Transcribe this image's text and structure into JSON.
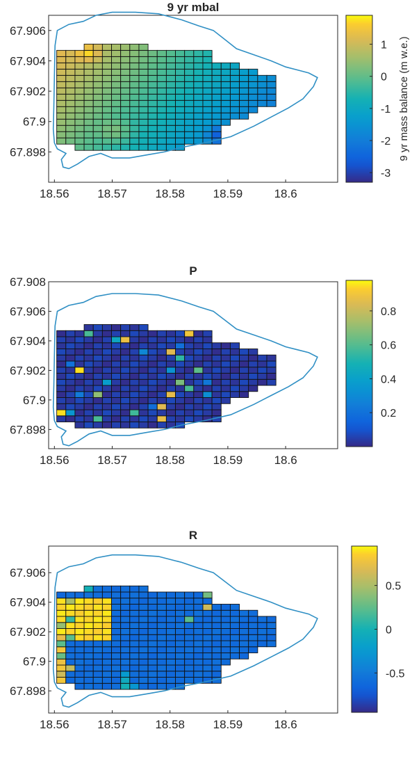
{
  "chart_data": [
    {
      "type": "heatmap",
      "title": "9 yr mbal",
      "xticks": [
        "18.56",
        "18.57",
        "18.58",
        "18.59",
        "18.6"
      ],
      "yticks": [
        "67.906",
        "67.904",
        "67.902",
        "67.9",
        "67.898"
      ],
      "xlim": [
        18.559,
        18.609
      ],
      "ylim": [
        67.896,
        67.907
      ],
      "grid_origin": [
        18.5604,
        67.8981
      ],
      "cell_size": [
        0.00158,
        0.000412
      ],
      "colorbar": {
        "ticks": [
          "1",
          "0",
          "-1",
          "-2",
          "-3"
        ],
        "tick_values": [
          1,
          0,
          -1,
          -2,
          -3
        ],
        "range": [
          -3.3,
          1.9
        ],
        "label": "9 yr mass balance (m w.e.)"
      },
      "row_extents": [
        [
          2,
          13
        ],
        [
          0,
          17
        ],
        [
          0,
          17
        ],
        [
          0,
          17
        ],
        [
          0,
          18
        ],
        [
          0,
          20
        ],
        [
          0,
          21
        ],
        [
          0,
          23
        ],
        [
          0,
          23
        ],
        [
          0,
          23
        ],
        [
          0,
          23
        ],
        [
          0,
          23
        ],
        [
          0,
          21
        ],
        [
          0,
          19
        ],
        [
          0,
          16
        ],
        [
          0,
          16
        ],
        [
          3,
          9
        ]
      ],
      "value_field": {
        "base": 0.2,
        "x_gradient": -2.6,
        "y_gradient": 1.1,
        "anomalies": [
          {
            "c": 17.5,
            "r": 2,
            "rad": 2,
            "add": -1.3
          },
          {
            "c": 6,
            "r": 2.5,
            "rad": 2.5,
            "add": 0.6
          },
          {
            "c": 3,
            "r": 15,
            "rad": 2,
            "add": 0.8
          }
        ]
      }
    },
    {
      "type": "heatmap",
      "title": "P",
      "xticks": [
        "18.56",
        "18.57",
        "18.58",
        "18.59",
        "18.6"
      ],
      "yticks": [
        "67.908",
        "67.906",
        "67.904",
        "67.902",
        "67.9",
        "67.898"
      ],
      "xlim": [
        18.559,
        18.609
      ],
      "ylim": [
        67.8967,
        67.908
      ],
      "grid_origin": [
        18.5604,
        67.8981
      ],
      "cell_size": [
        0.00158,
        0.000412
      ],
      "colorbar": {
        "ticks": [
          "0.8",
          "0.6",
          "0.4",
          "0.2"
        ],
        "tick_values": [
          0.8,
          0.6,
          0.4,
          0.2
        ],
        "range": [
          0,
          0.98
        ]
      },
      "row_extents": [
        [
          2,
          13
        ],
        [
          0,
          17
        ],
        [
          0,
          17
        ],
        [
          0,
          17
        ],
        [
          0,
          18
        ],
        [
          0,
          20
        ],
        [
          0,
          21
        ],
        [
          0,
          23
        ],
        [
          0,
          23
        ],
        [
          0,
          23
        ],
        [
          0,
          23
        ],
        [
          0,
          23
        ],
        [
          0,
          21
        ],
        [
          0,
          19
        ],
        [
          0,
          16
        ],
        [
          0,
          16
        ],
        [
          3,
          9
        ]
      ],
      "default_value": 0.04,
      "cells": [
        [
          0,
          2,
          0.92
        ],
        [
          1,
          2,
          0.35
        ],
        [
          2,
          5,
          0.25
        ],
        [
          4,
          5,
          0.7
        ],
        [
          2,
          9,
          0.92
        ],
        [
          1,
          10,
          0.18
        ],
        [
          4,
          1,
          0.55
        ],
        [
          5,
          7,
          0.35
        ],
        [
          7,
          14,
          0.85
        ],
        [
          6,
          14,
          0.45
        ],
        [
          3,
          15,
          0.55
        ],
        [
          4,
          18,
          0.35
        ],
        [
          8,
          20,
          0.78
        ],
        [
          7,
          18,
          0.6
        ],
        [
          4,
          20,
          0.22
        ],
        [
          10,
          23,
          0.15
        ],
        [
          11,
          1,
          0.9
        ],
        [
          11,
          3,
          0.82
        ],
        [
          12,
          5,
          0.88
        ],
        [
          13,
          7,
          0.65
        ],
        [
          12,
          9,
          0.3
        ],
        [
          13,
          11,
          0.55
        ],
        [
          12,
          12,
          0.88
        ],
        [
          13,
          13,
          0.22
        ],
        [
          14,
          15,
          0.9
        ],
        [
          15,
          16,
          0.18
        ],
        [
          14,
          6,
          0.55
        ],
        [
          15,
          9,
          0.6
        ],
        [
          16,
          5,
          0.3
        ],
        [
          16,
          7,
          0.22
        ],
        [
          9,
          12,
          0.3
        ],
        [
          10,
          3,
          0.2
        ],
        [
          8,
          2,
          0.55
        ]
      ]
    },
    {
      "type": "heatmap",
      "title": "R",
      "xticks": [
        "18.56",
        "18.57",
        "18.58",
        "18.59",
        "18.6"
      ],
      "yticks": [
        "67.906",
        "67.904",
        "67.902",
        "67.9",
        "67.898"
      ],
      "xlim": [
        18.559,
        18.609
      ],
      "ylim": [
        67.8965,
        67.9078
      ],
      "grid_origin": [
        18.5604,
        67.8981
      ],
      "cell_size": [
        0.00158,
        0.000412
      ],
      "colorbar": {
        "ticks": [
          "0.5",
          "0",
          "-0.5"
        ],
        "tick_values": [
          0.5,
          0,
          -0.5
        ],
        "range": [
          -0.95,
          0.95
        ]
      },
      "row_extents": [
        [
          2,
          13
        ],
        [
          0,
          17
        ],
        [
          0,
          17
        ],
        [
          0,
          17
        ],
        [
          0,
          18
        ],
        [
          0,
          20
        ],
        [
          0,
          21
        ],
        [
          0,
          23
        ],
        [
          0,
          23
        ],
        [
          0,
          23
        ],
        [
          0,
          23
        ],
        [
          0,
          23
        ],
        [
          0,
          21
        ],
        [
          0,
          19
        ],
        [
          0,
          16
        ],
        [
          0,
          16
        ],
        [
          3,
          9
        ]
      ],
      "default_value": -0.6,
      "cells": [
        [
          0,
          0,
          0.85
        ],
        [
          0,
          1,
          0.8
        ],
        [
          0,
          2,
          0.6
        ],
        [
          0,
          3,
          0.82
        ],
        [
          0,
          4,
          0.75
        ],
        [
          0,
          5,
          0.3
        ],
        [
          0,
          6,
          0.8
        ],
        [
          0,
          7,
          0.2
        ],
        [
          0,
          8,
          0.75
        ],
        [
          0,
          9,
          0.9
        ],
        [
          0,
          10,
          0.45
        ],
        [
          1,
          0,
          0.75
        ],
        [
          1,
          3,
          0.55
        ],
        [
          1,
          8,
          0.2
        ],
        [
          1,
          14,
          0.5
        ],
        [
          1,
          11,
          0.15
        ],
        [
          2,
          17,
          0.2
        ],
        [
          2,
          18,
          0.1
        ],
        [
          3,
          16,
          0.0
        ],
        [
          4,
          18,
          0.15
        ],
        [
          3,
          19,
          0.35
        ],
        [
          4,
          19,
          0.1
        ],
        [
          7,
          0,
          0.0
        ],
        [
          7,
          1,
          -0.1
        ],
        [
          7,
          2,
          -0.2
        ],
        [
          8,
          0,
          -0.3
        ],
        [
          12,
          20,
          0.1
        ],
        [
          12,
          18,
          0.3
        ],
        [
          10,
          21,
          0.2
        ],
        [
          9,
          21,
          0.1
        ],
        [
          14,
          11,
          0.2
        ],
        [
          16,
          13,
          0.6
        ],
        [
          16,
          15,
          0.3
        ],
        [
          16,
          16,
          0.45
        ]
      ],
      "block": {
        "rows": [
          8,
          14
        ],
        "cols": [
          0,
          5
        ],
        "value": 0.88
      }
    }
  ]
}
